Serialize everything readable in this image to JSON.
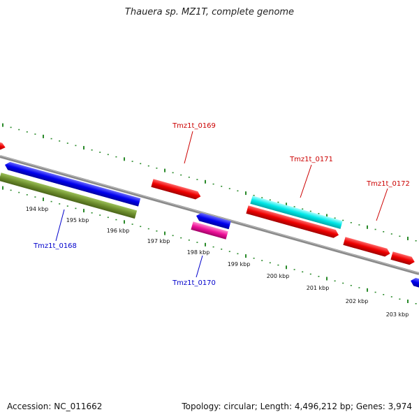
{
  "title": "Thauera sp. MZ1T, complete genome",
  "footer": {
    "accession": "Accession: NC_011662",
    "info": "Topology: circular; Length: 4,496,212 bp; Genes: 3,974"
  },
  "colors": {
    "backbone": "#888888",
    "ticks": "#2a8a2a",
    "forward_label": "#cc0000",
    "reverse_label": "#0000cc"
  },
  "scale_labels": [
    "194 kbp",
    "195 kbp",
    "196 kbp",
    "197 kbp",
    "198 kbp",
    "199 kbp",
    "200 kbp",
    "201 kbp",
    "202 kbp",
    "203 kbp"
  ],
  "gene_labels": [
    {
      "text": "Tmz1t_0169",
      "strand": "forward"
    },
    {
      "text": "Tmz1t_0171",
      "strand": "forward"
    },
    {
      "text": "Tmz1t_0172",
      "strand": "forward"
    },
    {
      "text": "Tmz1t_0168",
      "strand": "reverse"
    },
    {
      "text": "Tmz1t_0170",
      "strand": "reverse"
    }
  ]
}
